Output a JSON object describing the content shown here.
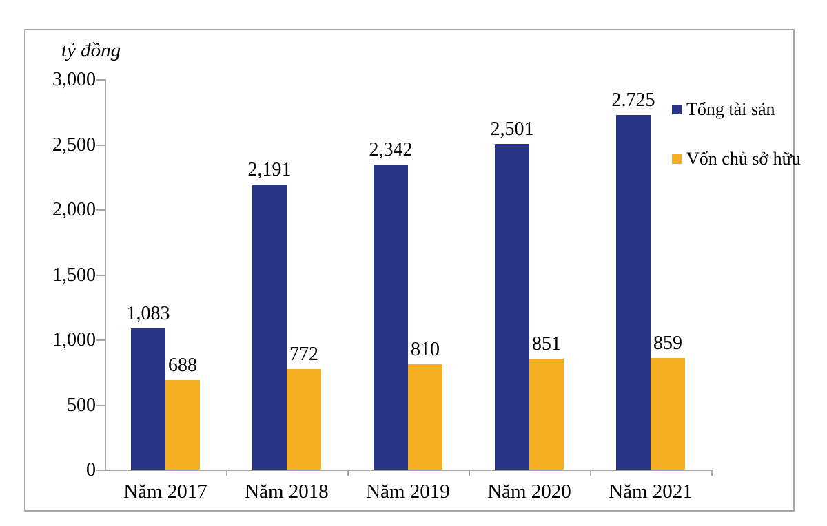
{
  "chart_data": {
    "type": "bar",
    "title": "",
    "unit_label": "tỷ đồng",
    "categories": [
      "Năm 2017",
      "Năm 2018",
      "Năm 2019",
      "Năm 2020",
      "Năm 2021"
    ],
    "series": [
      {
        "name": "Tổng tài sản",
        "color": "#2a3586",
        "values": [
          1083,
          2191,
          2342,
          2501,
          2725
        ],
        "labels": [
          "1,083",
          "2,191",
          "2,342",
          "2,501",
          "2.725"
        ]
      },
      {
        "name": "Vốn chủ sở hữu",
        "color": "#f5ad21",
        "values": [
          688,
          772,
          810,
          851,
          859
        ],
        "labels": [
          "688",
          "772",
          "810",
          "851",
          "859"
        ]
      }
    ],
    "y_ticks": [
      {
        "value": 0,
        "label": "0"
      },
      {
        "value": 500,
        "label": "500"
      },
      {
        "value": 1000,
        "label": "1,000"
      },
      {
        "value": 1500,
        "label": "1,500"
      },
      {
        "value": 2000,
        "label": "2,000"
      },
      {
        "value": 2500,
        "label": "2,500"
      },
      {
        "value": 3000,
        "label": "3,000"
      }
    ],
    "ylim": [
      0,
      3000
    ],
    "grid": false,
    "legend_position": "upper-right"
  },
  "colors": {
    "axis": "#a6a6a6",
    "frame_border": "#a6a6a6",
    "text": "#000000"
  }
}
